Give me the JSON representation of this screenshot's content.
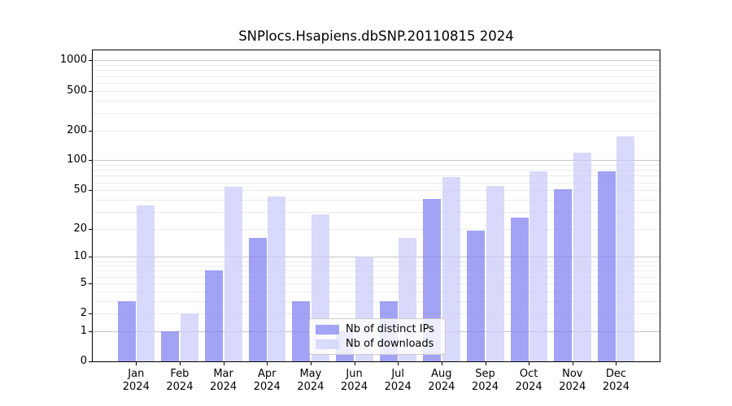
{
  "title": "SNPlocs.Hsapiens.dbSNP.20110815 2024",
  "legend": {
    "items": [
      {
        "label": "Nb of distinct IPs",
        "color": "#a4a4f5"
      },
      {
        "label": "Nb of downloads",
        "color": "#dadafb"
      }
    ]
  },
  "chart_data": {
    "type": "bar",
    "title": "SNPlocs.Hsapiens.dbSNP.20110815 2024",
    "xlabel": "",
    "ylabel": "",
    "categories": [
      "Jan 2024",
      "Feb 2024",
      "Mar 2024",
      "Apr 2024",
      "May 2024",
      "Jun 2024",
      "Jul 2024",
      "Aug 2024",
      "Sep 2024",
      "Oct 2024",
      "Nov 2024",
      "Dec 2024"
    ],
    "series": [
      {
        "name": "Nb of distinct IPs",
        "key": "ips",
        "color": "rgba(128,128,241,0.72)",
        "legend_color": "#a4a4f5",
        "values": [
          3,
          1,
          7,
          16,
          3,
          1,
          3,
          41,
          19,
          26,
          51,
          77
        ]
      },
      {
        "name": "Nb of downloads",
        "key": "downloads",
        "color": "rgba(203,203,249,0.72)",
        "legend_color": "#dadafb",
        "values": [
          35,
          2,
          54,
          43,
          28,
          10,
          16,
          68,
          55,
          78,
          120,
          175
        ]
      }
    ],
    "y_axis": {
      "scale": "log10(1+x)",
      "ticks": [
        0,
        1,
        2,
        5,
        10,
        20,
        50,
        100,
        200,
        500,
        1000
      ],
      "decade_gridlines": [
        1,
        10,
        100,
        1000
      ]
    },
    "grid": true,
    "legend_position": "inside lower-center"
  }
}
